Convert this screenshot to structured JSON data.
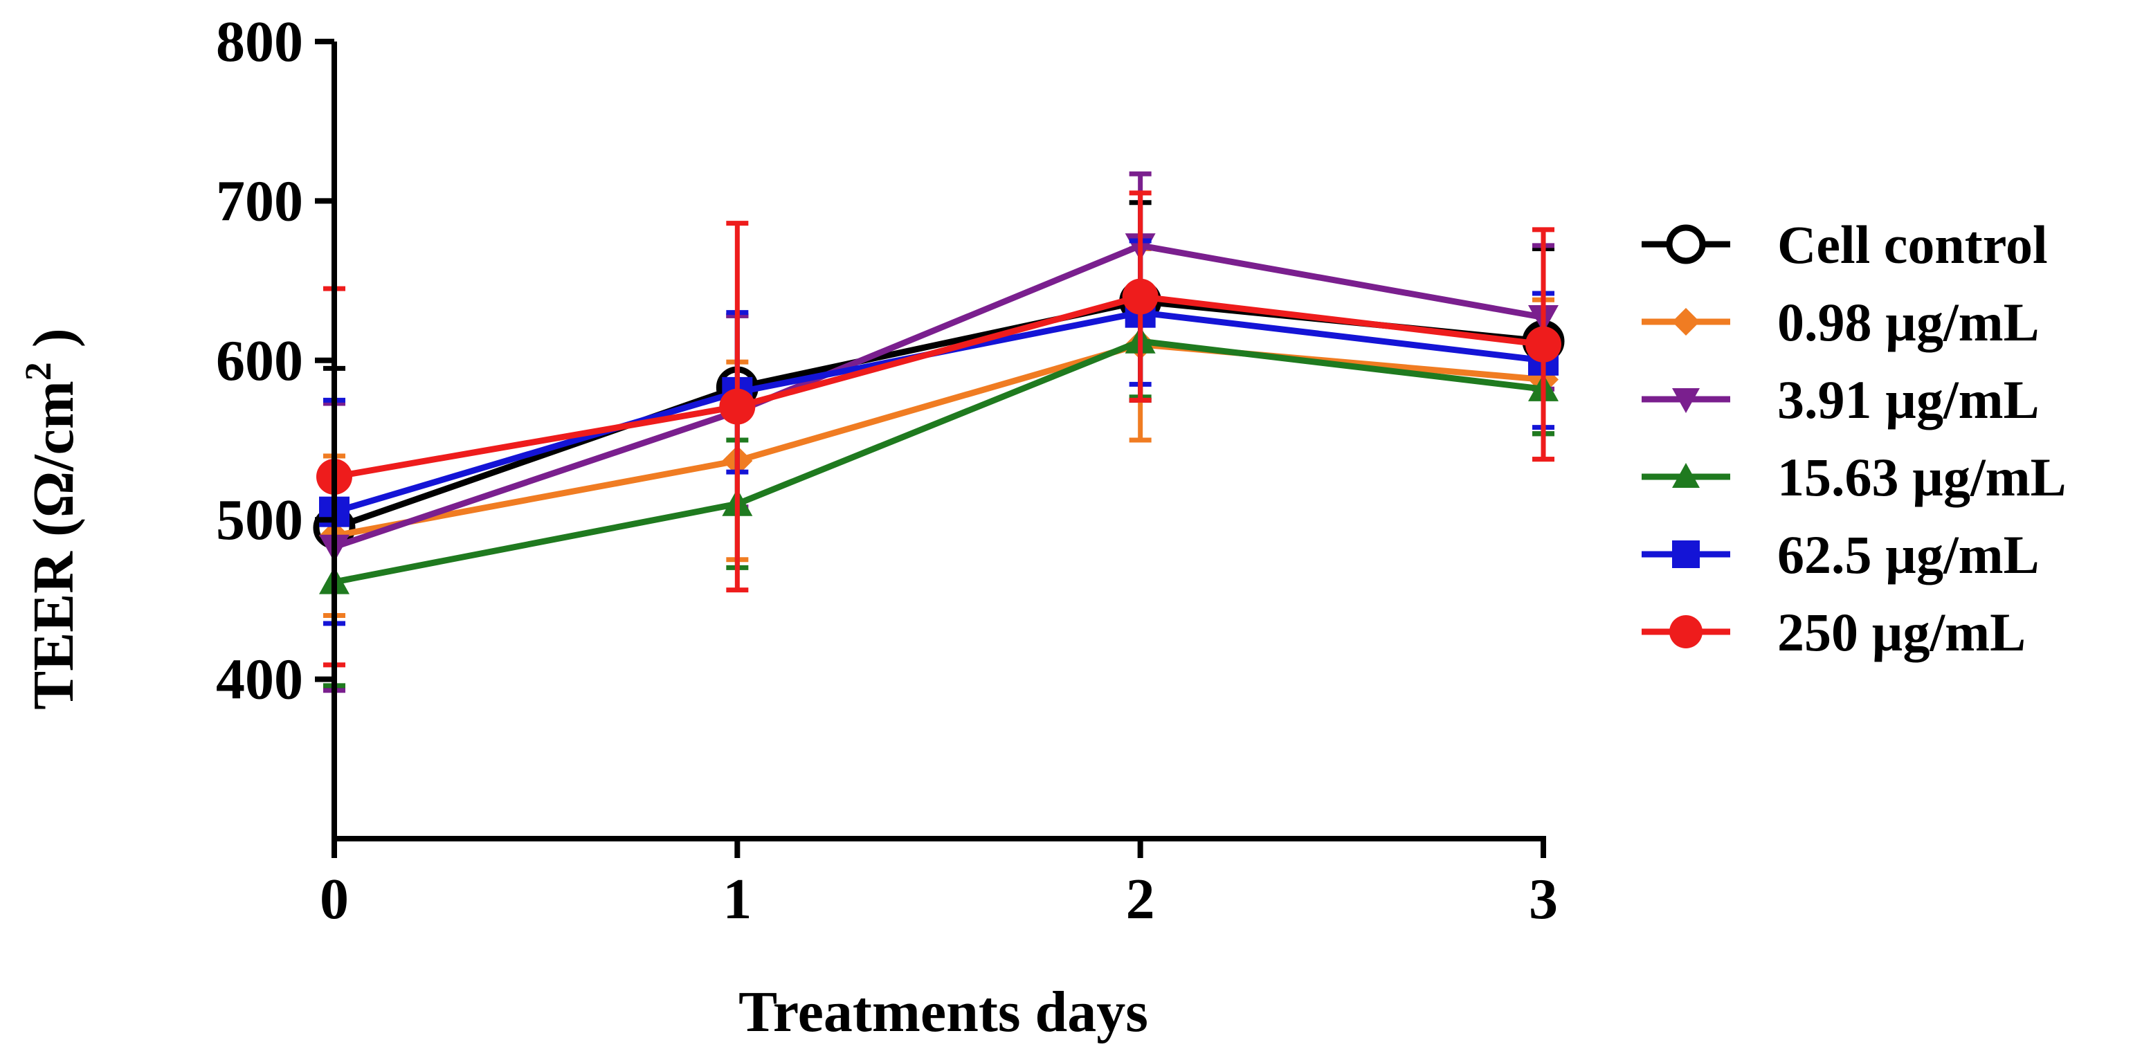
{
  "chart_data": {
    "type": "line",
    "title": "",
    "xlabel": "Treatments days",
    "ylabel_prefix": "TEER (Ω/cm",
    "ylabel_sup": "2",
    "ylabel_suffix": " )",
    "x": [
      0,
      1,
      2,
      3
    ],
    "x_tick_labels": [
      "0",
      "1",
      "2",
      "3"
    ],
    "xlim": [
      0,
      3
    ],
    "ylim": [
      300,
      800
    ],
    "y_ticks": [
      400,
      500,
      600,
      700,
      800
    ],
    "y_tick_labels": [
      "400",
      "500",
      "600",
      "700",
      "800"
    ],
    "grid": false,
    "legend_position": "right",
    "series": [
      {
        "name": "Cell control",
        "color": "#000000",
        "marker": "open-circle",
        "values": [
          495,
          583,
          637,
          612
        ],
        "errors": [
          100,
          45,
          62,
          58
        ]
      },
      {
        "name": "0.98 µg/mL",
        "color": "#f07c22",
        "marker": "diamond",
        "values": [
          490,
          537,
          610,
          588
        ],
        "errors": [
          50,
          62,
          60,
          50
        ]
      },
      {
        "name": "3.91 µg/mL",
        "color": "#7a1f8e",
        "marker": "triangle-down",
        "values": [
          483,
          568,
          672,
          627
        ],
        "errors": [
          90,
          60,
          45,
          45
        ]
      },
      {
        "name": "15.63 µg/mL",
        "color": "#1f7a1f",
        "marker": "triangle-up",
        "values": [
          461,
          510,
          612,
          582
        ],
        "errors": [
          65,
          40,
          35,
          28
        ]
      },
      {
        "name": "62.5 µg/mL",
        "color": "#1414d6",
        "marker": "square",
        "values": [
          505,
          580,
          630,
          600
        ],
        "errors": [
          70,
          50,
          45,
          42
        ]
      },
      {
        "name": "250 µg/mL",
        "color": "#ee1c1c",
        "marker": "filled-circle",
        "values": [
          527,
          571,
          640,
          610
        ],
        "errors": [
          118,
          115,
          65,
          72
        ]
      }
    ]
  }
}
